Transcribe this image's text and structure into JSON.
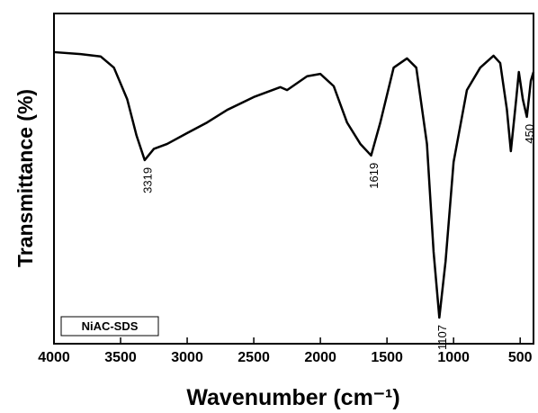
{
  "chart_data": {
    "type": "line",
    "xlabel": "Wavenumber (cm⁻¹)",
    "ylabel": "Transmittance (%)",
    "xlim": [
      4000,
      400
    ],
    "xticks": [
      4000,
      3500,
      3000,
      2500,
      2000,
      1500,
      1000,
      500
    ],
    "ylim": [
      0,
      100
    ],
    "x": [
      4000,
      3800,
      3650,
      3550,
      3450,
      3380,
      3319,
      3250,
      3150,
      3000,
      2850,
      2700,
      2500,
      2300,
      2250,
      2100,
      2000,
      1900,
      1800,
      1700,
      1619,
      1550,
      1450,
      1350,
      1280,
      1200,
      1150,
      1107,
      1060,
      1000,
      900,
      800,
      700,
      650,
      600,
      570,
      530,
      510,
      480,
      450,
      420,
      400
    ],
    "series": [
      {
        "name": "NiAC-SDS",
        "color": "#000000",
        "values": [
          88.3,
          87.7,
          87,
          83.6,
          74,
          63,
          55.6,
          59,
          60.5,
          63.8,
          67,
          70.8,
          74.7,
          77.7,
          76.8,
          81,
          81.7,
          78,
          67,
          60.5,
          57,
          67,
          83.6,
          86.4,
          83.6,
          60.5,
          27.8,
          7.9,
          25,
          55,
          76.8,
          83.6,
          87.2,
          85,
          71,
          58.3,
          74,
          82.3,
          74,
          68.7,
          79.6,
          82.3
        ]
      }
    ],
    "annotations": [
      3319,
      1619,
      1107,
      450
    ],
    "legend": "lower left"
  }
}
